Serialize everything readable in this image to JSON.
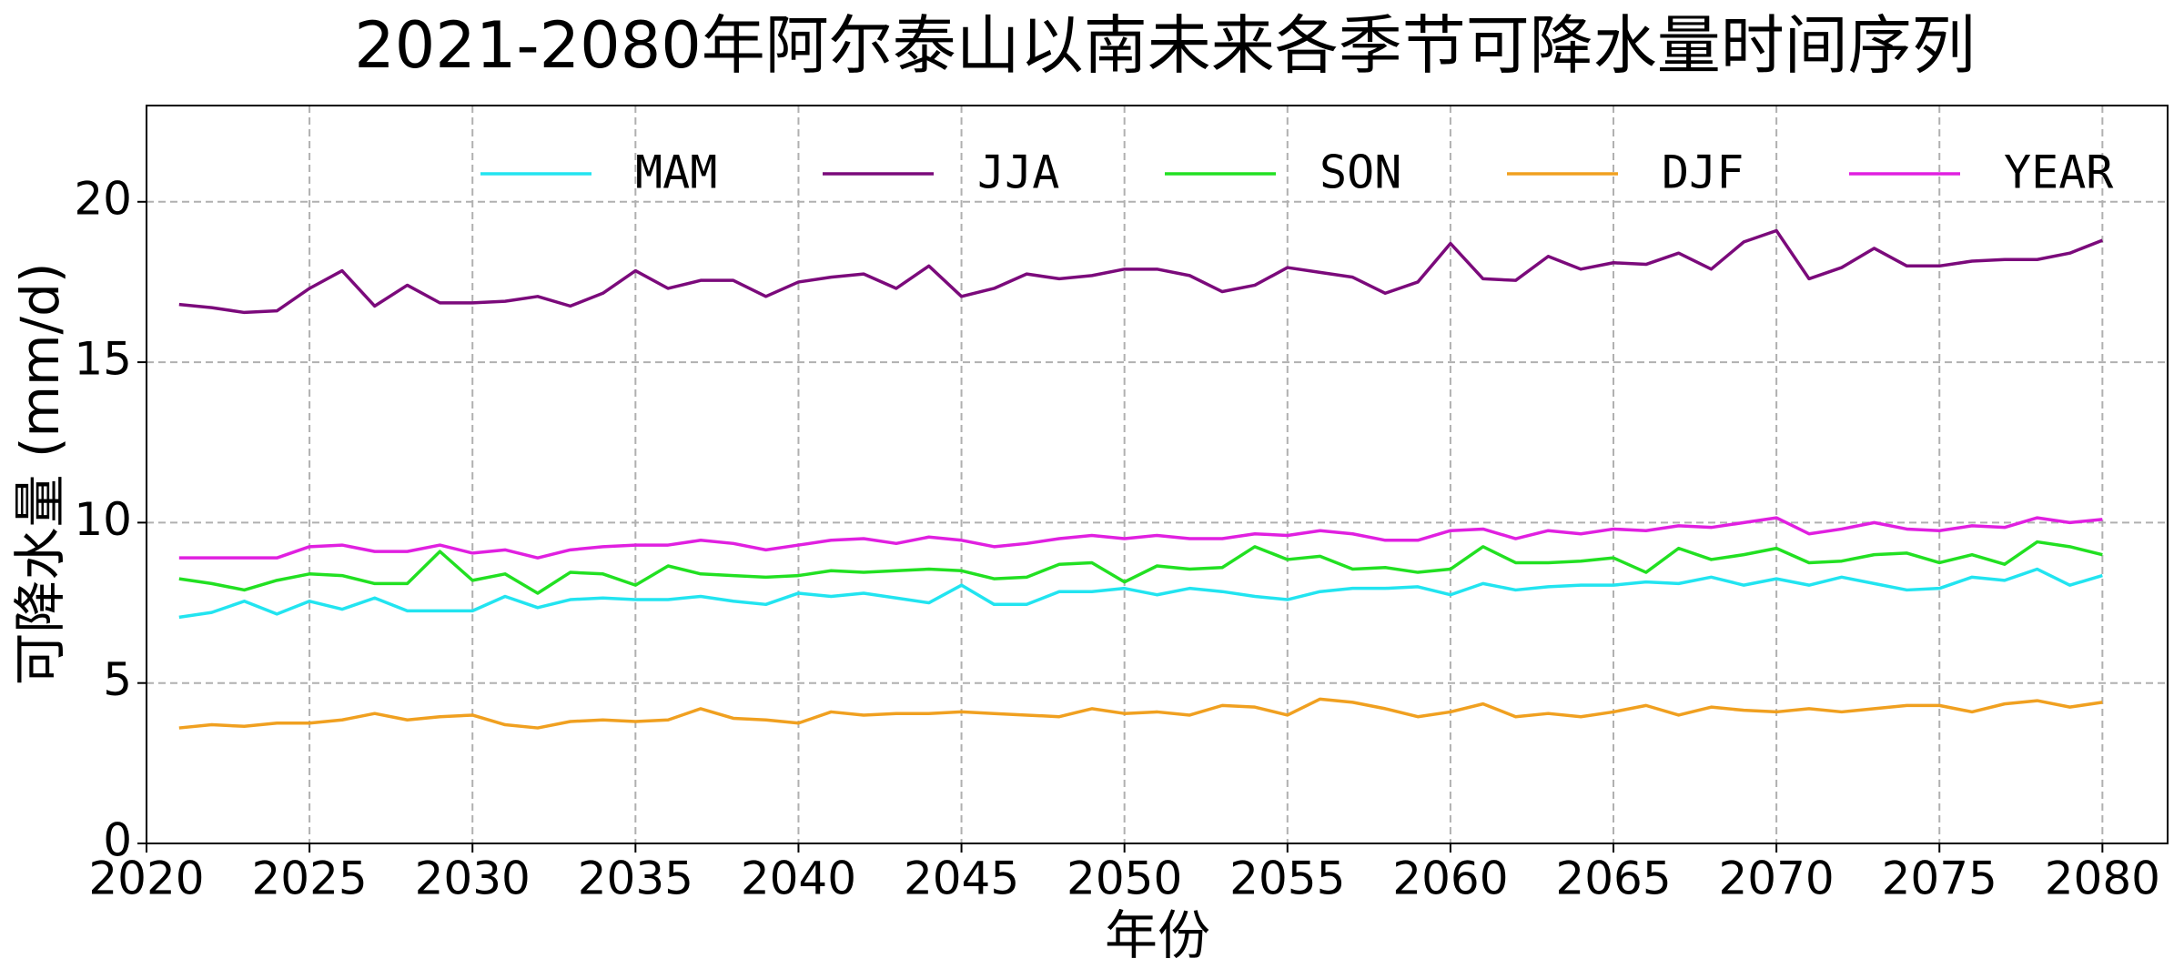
{
  "chart_data": {
    "type": "line",
    "title": "2021-2080年阿尔泰山以南未来各季节可降水量时间序列",
    "x_label": "年份",
    "y_label": "可降水量 (mm/d)",
    "x": [
      2021,
      2022,
      2023,
      2024,
      2025,
      2026,
      2027,
      2028,
      2029,
      2030,
      2031,
      2032,
      2033,
      2034,
      2035,
      2036,
      2037,
      2038,
      2039,
      2040,
      2041,
      2042,
      2043,
      2044,
      2045,
      2046,
      2047,
      2048,
      2049,
      2050,
      2051,
      2052,
      2053,
      2054,
      2055,
      2056,
      2057,
      2058,
      2059,
      2060,
      2061,
      2062,
      2063,
      2064,
      2065,
      2066,
      2067,
      2068,
      2069,
      2070,
      2071,
      2072,
      2073,
      2074,
      2075,
      2076,
      2077,
      2078,
      2079,
      2080
    ],
    "series": [
      {
        "name": "MAM",
        "color": "#22e4f0",
        "values": [
          7.05,
          7.2,
          7.55,
          7.15,
          7.55,
          7.3,
          7.65,
          7.25,
          7.25,
          7.25,
          7.7,
          7.35,
          7.6,
          7.65,
          7.6,
          7.6,
          7.7,
          7.55,
          7.45,
          7.8,
          7.7,
          7.8,
          7.65,
          7.5,
          8.05,
          7.45,
          7.45,
          7.85,
          7.85,
          7.95,
          7.75,
          7.95,
          7.85,
          7.7,
          7.6,
          7.85,
          7.95,
          7.95,
          8.0,
          7.75,
          8.1,
          7.9,
          8.0,
          8.05,
          8.05,
          8.15,
          8.1,
          8.3,
          8.05,
          8.25,
          8.05,
          8.3,
          8.1,
          7.9,
          7.95,
          8.3,
          8.2,
          8.55,
          8.05,
          8.35
        ]
      },
      {
        "name": "JJA",
        "color": "#7b0a7b",
        "values": [
          16.8,
          16.7,
          16.55,
          16.6,
          17.3,
          17.85,
          16.75,
          17.4,
          16.85,
          16.85,
          16.9,
          17.05,
          16.75,
          17.15,
          17.85,
          17.3,
          17.55,
          17.55,
          17.05,
          17.5,
          17.65,
          17.75,
          17.3,
          18.0,
          17.05,
          17.3,
          17.75,
          17.6,
          17.7,
          17.9,
          17.9,
          17.7,
          17.2,
          17.4,
          17.95,
          17.8,
          17.65,
          17.15,
          17.5,
          18.7,
          17.6,
          17.55,
          18.3,
          17.9,
          18.1,
          18.05,
          18.4,
          17.9,
          18.75,
          19.1,
          17.6,
          17.95,
          18.55,
          18.0,
          18.0,
          18.15,
          18.2,
          18.2,
          18.4,
          18.8
        ]
      },
      {
        "name": "SON",
        "color": "#22e022",
        "values": [
          8.25,
          8.1,
          7.9,
          8.2,
          8.4,
          8.35,
          8.1,
          8.1,
          9.1,
          8.2,
          8.4,
          7.8,
          8.45,
          8.4,
          8.05,
          8.65,
          8.4,
          8.35,
          8.3,
          8.35,
          8.5,
          8.45,
          8.5,
          8.55,
          8.5,
          8.25,
          8.3,
          8.7,
          8.75,
          8.15,
          8.65,
          8.55,
          8.6,
          9.25,
          8.85,
          8.95,
          8.55,
          8.6,
          8.45,
          8.55,
          9.25,
          8.75,
          8.75,
          8.8,
          8.9,
          8.45,
          9.2,
          8.85,
          9.0,
          9.2,
          8.75,
          8.8,
          9.0,
          9.05,
          8.75,
          9.0,
          8.7,
          9.4,
          9.25,
          9.0
        ]
      },
      {
        "name": "DJF",
        "color": "#f0a020",
        "values": [
          3.6,
          3.7,
          3.65,
          3.75,
          3.75,
          3.85,
          4.05,
          3.85,
          3.95,
          4.0,
          3.7,
          3.6,
          3.8,
          3.85,
          3.8,
          3.85,
          4.2,
          3.9,
          3.85,
          3.75,
          4.1,
          4.0,
          4.05,
          4.05,
          4.1,
          4.05,
          4.0,
          3.95,
          4.2,
          4.05,
          4.1,
          4.0,
          4.3,
          4.25,
          4.0,
          4.5,
          4.4,
          4.2,
          3.95,
          4.1,
          4.35,
          3.95,
          4.05,
          3.95,
          4.1,
          4.3,
          4.0,
          4.25,
          4.15,
          4.1,
          4.2,
          4.1,
          4.2,
          4.3,
          4.3,
          4.1,
          4.35,
          4.45,
          4.25,
          4.4
        ]
      },
      {
        "name": "YEAR",
        "color": "#e020e0",
        "values": [
          8.9,
          8.9,
          8.9,
          8.9,
          9.25,
          9.3,
          9.1,
          9.1,
          9.3,
          9.05,
          9.15,
          8.9,
          9.15,
          9.25,
          9.3,
          9.3,
          9.45,
          9.35,
          9.15,
          9.3,
          9.45,
          9.5,
          9.35,
          9.55,
          9.45,
          9.25,
          9.35,
          9.5,
          9.6,
          9.5,
          9.6,
          9.5,
          9.5,
          9.65,
          9.6,
          9.75,
          9.65,
          9.45,
          9.45,
          9.75,
          9.8,
          9.5,
          9.75,
          9.65,
          9.8,
          9.75,
          9.9,
          9.85,
          10.0,
          10.15,
          9.65,
          9.8,
          10.0,
          9.8,
          9.75,
          9.9,
          9.85,
          10.15,
          10.0,
          10.1
        ]
      }
    ],
    "xlim": [
      2020,
      2082
    ],
    "ylim": [
      0,
      23
    ],
    "xticks": [
      2020,
      2025,
      2030,
      2035,
      2040,
      2045,
      2050,
      2055,
      2060,
      2065,
      2070,
      2075,
      2080
    ],
    "yticks": [
      0,
      5,
      10,
      15,
      20
    ],
    "grid": true,
    "legend": "upper right"
  }
}
